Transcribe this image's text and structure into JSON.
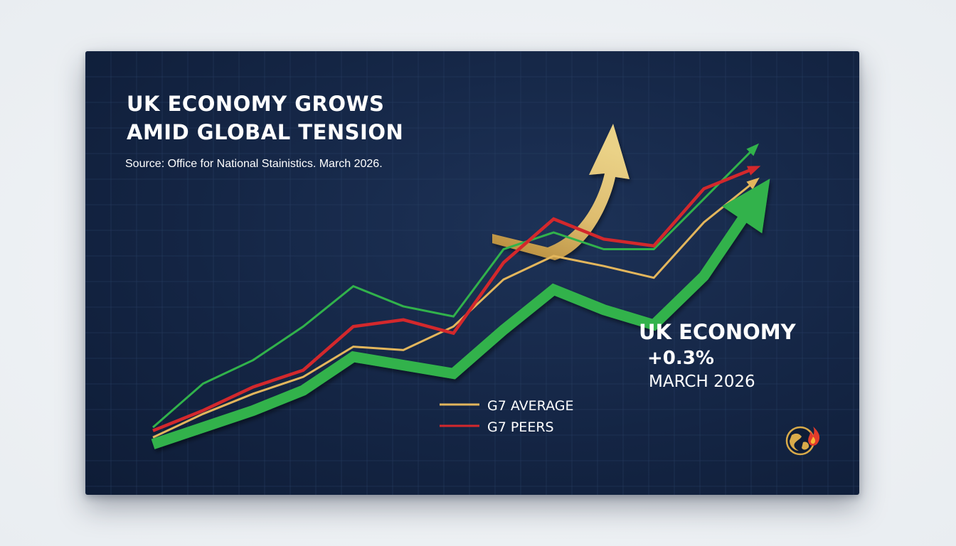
{
  "chart_data": {
    "type": "line",
    "title_lines": [
      "UK ECONOMY GROWS",
      "AMID GLOBAL TENSION"
    ],
    "source": "Source: Office for National Stainistics. March 2026.",
    "x": [
      0,
      1,
      2,
      3,
      4,
      5,
      6,
      7,
      8,
      9,
      10,
      11,
      12
    ],
    "series": [
      {
        "name": "",
        "role": "uk",
        "color": "#31b24b",
        "values": [
          1.0,
          1.5,
          2.0,
          2.6,
          3.6,
          3.35,
          3.1,
          4.4,
          5.6,
          5.0,
          4.55,
          6.0,
          8.2
        ]
      },
      {
        "name": "G7 AVERAGE",
        "role": "g7_average",
        "color": "#e3b65c",
        "values": [
          1.2,
          1.9,
          2.5,
          3.0,
          3.9,
          3.8,
          4.5,
          5.9,
          6.6,
          6.3,
          5.95,
          7.6,
          8.8
        ]
      },
      {
        "name": "G7 PEERS",
        "role": "g7_peers",
        "color": "#d3282c",
        "values": [
          1.4,
          2.0,
          2.7,
          3.2,
          4.5,
          4.7,
          4.3,
          6.4,
          7.7,
          7.1,
          6.9,
          8.6,
          9.2
        ]
      },
      {
        "name": "",
        "role": "thin_green",
        "color": "#31b24b",
        "values": [
          1.5,
          2.8,
          3.5,
          4.5,
          5.7,
          5.1,
          4.8,
          6.8,
          7.3,
          6.8,
          6.8,
          8.3,
          9.8
        ]
      }
    ],
    "ylim": [
      0,
      11
    ],
    "grid": true,
    "legend": {
      "placement": "bottom-center",
      "entries": [
        {
          "label": "G7 AVERAGE",
          "color": "#e3b65c"
        },
        {
          "label": "G7 PEERS",
          "color": "#d3282c"
        }
      ]
    },
    "callout": {
      "label": "UK ECONOMY",
      "value": "+0.3%",
      "date": "MARCH 2026"
    },
    "colors": {
      "background": "#142544",
      "gold_arrow": "#e8c46a",
      "uk_green": "#31b24b"
    },
    "icon": "globe-flame-icon"
  }
}
